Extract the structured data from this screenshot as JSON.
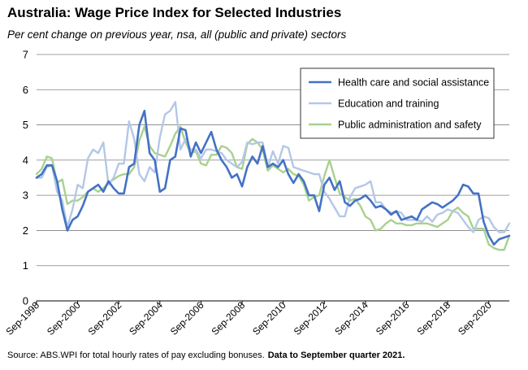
{
  "chart_data": {
    "type": "line",
    "title": "Australia: Wage Price Index for Selected Industries",
    "subtitle": "Per cent change on previous year, nsa, all (public and private) sectors",
    "source": "Source: ABS.WPI for total hourly rates of pay excluding bonuses.",
    "note": "Data to September quarter  2021.",
    "ylim": [
      0,
      7
    ],
    "yticks": [
      0,
      1,
      2,
      3,
      4,
      5,
      6,
      7
    ],
    "x_start": "Sep-1998",
    "x_end": "Sep-2021",
    "xticks": [
      "Sep-1998",
      "Sep-2000",
      "Sep-2002",
      "Sep-2004",
      "Sep-2006",
      "Sep-2008",
      "Sep-2010",
      "Sep-2012",
      "Sep-2014",
      "Sep-2016",
      "Sep-2018",
      "Sep-2020"
    ],
    "grid": true,
    "legend_position": "top-right",
    "series": [
      {
        "name": "Health care and social assistance",
        "color": "#4472c4",
        "values": [
          3.5,
          3.6,
          3.85,
          3.85,
          3.4,
          2.6,
          2.0,
          2.3,
          2.4,
          2.7,
          3.1,
          3.2,
          3.3,
          3.1,
          3.4,
          3.2,
          3.05,
          3.05,
          3.8,
          3.9,
          5.0,
          5.4,
          4.2,
          4.0,
          3.1,
          3.2,
          4.0,
          4.1,
          4.9,
          4.85,
          4.1,
          4.5,
          4.2,
          4.5,
          4.8,
          4.3,
          4.0,
          3.8,
          3.5,
          3.6,
          3.25,
          3.8,
          4.1,
          3.9,
          4.4,
          3.8,
          3.9,
          3.8,
          4.0,
          3.6,
          3.35,
          3.6,
          3.4,
          3.0,
          3.0,
          2.55,
          3.3,
          3.5,
          3.15,
          3.4,
          2.8,
          2.7,
          2.85,
          2.9,
          3.0,
          2.85,
          2.65,
          2.7,
          2.6,
          2.45,
          2.55,
          2.3,
          2.35,
          2.4,
          2.3,
          2.6,
          2.7,
          2.8,
          2.75,
          2.65,
          2.75,
          2.85,
          3.0,
          3.3,
          3.25,
          3.05,
          3.05,
          2.25,
          1.85,
          1.6,
          1.75,
          1.8,
          1.85
        ]
      },
      {
        "name": "Education and training",
        "color": "#b4c7e7",
        "values": [
          3.5,
          3.5,
          3.8,
          3.85,
          3.1,
          2.85,
          2.1,
          2.6,
          3.3,
          3.2,
          4.05,
          4.3,
          4.2,
          4.5,
          3.3,
          3.5,
          3.9,
          3.9,
          5.1,
          4.6,
          3.6,
          3.4,
          3.8,
          3.65,
          4.65,
          5.3,
          5.4,
          5.65,
          4.3,
          4.6,
          4.3,
          4.3,
          4.05,
          4.3,
          4.3,
          4.25,
          4.2,
          4.0,
          3.9,
          3.8,
          3.95,
          4.5,
          4.45,
          4.5,
          4.5,
          3.8,
          4.25,
          3.9,
          4.4,
          4.35,
          3.8,
          3.75,
          3.7,
          3.65,
          3.6,
          3.6,
          3.1,
          2.9,
          2.65,
          2.4,
          2.4,
          2.95,
          3.2,
          3.25,
          3.3,
          3.4,
          2.8,
          2.8,
          2.6,
          2.5,
          2.55,
          2.5,
          2.3,
          2.3,
          2.3,
          2.25,
          2.4,
          2.25,
          2.45,
          2.5,
          2.6,
          2.55,
          2.5,
          2.3,
          2.1,
          1.95,
          2.3,
          2.4,
          2.35,
          2.1,
          1.95,
          1.95,
          2.2
        ]
      },
      {
        "name": "Public administration and safety",
        "color": "#a9d18e",
        "values": [
          3.6,
          3.75,
          4.1,
          4.05,
          3.35,
          3.45,
          2.75,
          2.85,
          2.85,
          2.95,
          3.1,
          3.2,
          3.1,
          3.2,
          3.35,
          3.45,
          3.55,
          3.6,
          3.6,
          3.8,
          4.55,
          4.95,
          4.4,
          4.2,
          4.15,
          4.1,
          4.4,
          4.75,
          4.95,
          4.5,
          4.2,
          4.25,
          3.9,
          3.85,
          4.15,
          4.15,
          4.4,
          4.35,
          4.2,
          3.8,
          3.75,
          4.45,
          4.6,
          4.5,
          4.3,
          3.7,
          3.85,
          3.75,
          3.65,
          3.75,
          3.6,
          3.55,
          3.3,
          2.85,
          2.95,
          3.0,
          3.55,
          4.0,
          3.5,
          3.05,
          2.95,
          2.85,
          2.9,
          2.7,
          2.4,
          2.3,
          2.0,
          2.05,
          2.2,
          2.3,
          2.2,
          2.2,
          2.15,
          2.15,
          2.2,
          2.2,
          2.2,
          2.15,
          2.1,
          2.2,
          2.3,
          2.55,
          2.65,
          2.5,
          2.4,
          2.05,
          2.05,
          2.05,
          1.6,
          1.5,
          1.45,
          1.45,
          1.85
        ]
      }
    ]
  }
}
